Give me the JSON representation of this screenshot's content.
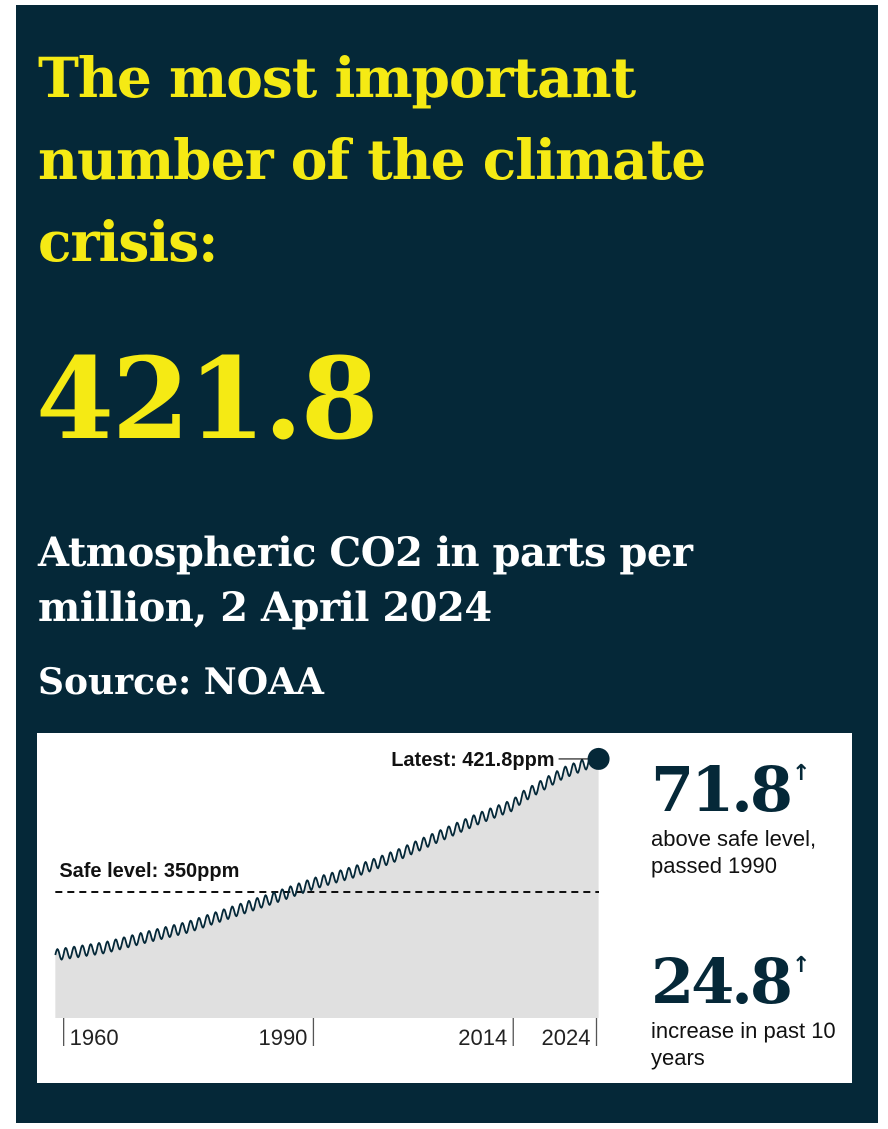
{
  "headline": "The most important number of the climate crisis:",
  "big_number": "421.8",
  "subtitle": "Atmospheric CO2 in parts per million, 2 April 2024",
  "source": "Source: NOAA",
  "stats": [
    {
      "value": "71.8",
      "arrow": "↑",
      "description": "above safe level, passed 1990"
    },
    {
      "value": "24.8",
      "arrow": "↑",
      "description": "increase in past 10 years"
    }
  ],
  "colors": {
    "background": "#052838",
    "headline": "#f5ea14",
    "chart_fill": "#e0e0e0",
    "series_line": "#052838"
  },
  "chart_data": {
    "type": "area",
    "title": "",
    "xlabel": "",
    "ylabel": "",
    "xlim": [
      1958,
      2024.3
    ],
    "ylim": [
      282,
      425
    ],
    "x_ticks": [
      1960,
      1990,
      2014,
      2024
    ],
    "x_tick_labels": [
      "1960",
      "1990",
      "2014",
      "2024"
    ],
    "grid": false,
    "seasonal_amplitude": 3,
    "series": [
      {
        "points": [
          [
            1959,
            316
          ],
          [
            1965,
            320
          ],
          [
            1970,
            325.7
          ],
          [
            1975,
            331.1
          ],
          [
            1980,
            338.8
          ],
          [
            1985,
            346.4
          ],
          [
            1990,
            354.5
          ],
          [
            1995,
            361
          ],
          [
            2000,
            369.7
          ],
          [
            2005,
            379.9
          ],
          [
            2010,
            389.9
          ],
          [
            2014,
            397
          ],
          [
            2015,
            401
          ],
          [
            2020,
            414.2
          ],
          [
            2024.25,
            421.8
          ]
        ]
      }
    ],
    "reference_line": {
      "y": 350,
      "label": "Safe level: 350ppm",
      "style": "dashed"
    },
    "latest_point": {
      "x": 2024.25,
      "y": 421.8,
      "label": "Latest: 421.8ppm"
    }
  }
}
